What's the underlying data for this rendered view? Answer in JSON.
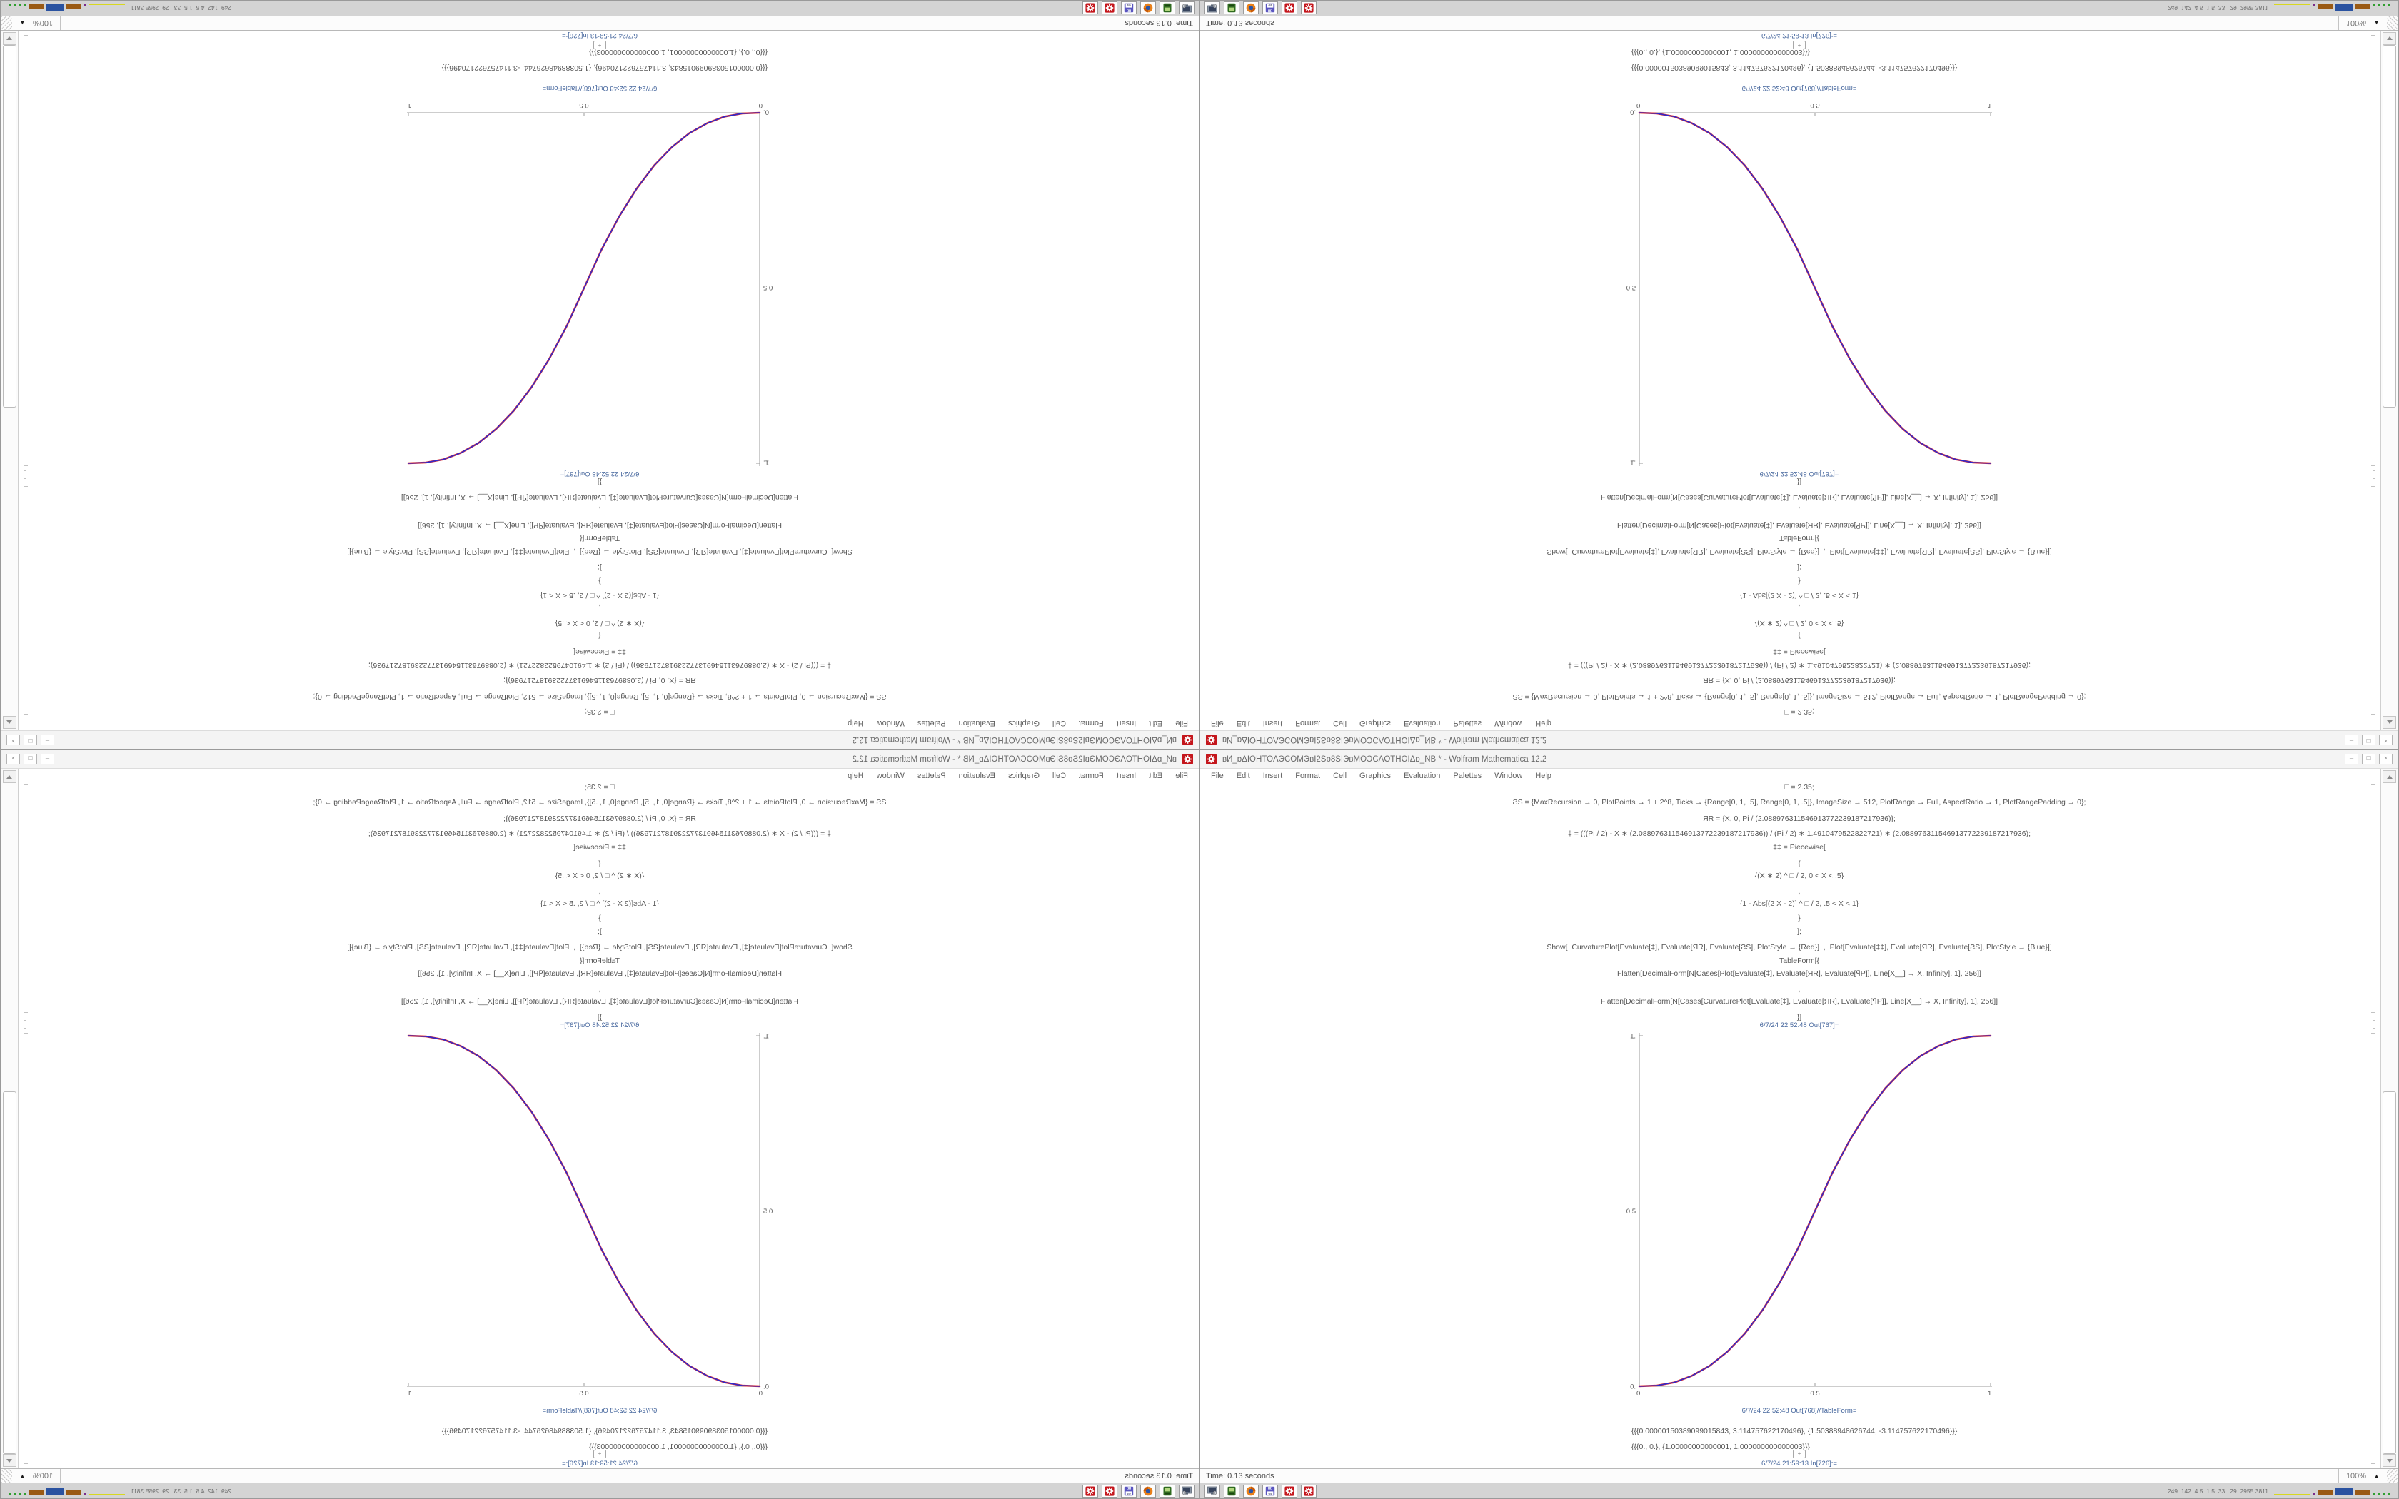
{
  "window": {
    "title": "вИ_ɒΔIOHTOΛЭCOMЭвI2Sɒ8SIЭвMOƆCΛOTHOIΔɒ_NB * - Wolfram Mathematica 12.2",
    "app_icon": "mathematica-gear-icon",
    "menus": [
      "File",
      "Edit",
      "Insert",
      "Format",
      "Cell",
      "Graphics",
      "Evaluation",
      "Palettes",
      "Window",
      "Help"
    ],
    "buttons": [
      {
        "name": "minimize-button",
        "glyph": "–"
      },
      {
        "name": "maximize-button",
        "glyph": "□"
      },
      {
        "name": "close-button",
        "glyph": "×"
      }
    ]
  },
  "notebook": {
    "code_lines": [
      "□ = 2.35;",
      "ƧS = {MaxRecursion → 0, PlotPoints → 1 + 2^8, Ticks → {Range[0, 1, .5], Range[0, 1, .5]}, ImageSize → 512, PlotRange → Full, AspectRatio → 1, PlotRangePadding → 0};",
      "ЯR = {X, 0, Pi / (2.088976311546913772239187217936)};",
      "‡ = (((Pi / 2) - X ∗ (2.088976311546913772239187217936)) / (Pi / 2) ∗ 1.4910479522822721) ∗ (2.088976311546913772239187217936);",
      "‡‡ = Piecewise[",
      "{",
      "{(X ∗ 2) ^ □ / 2, 0 < X < .5}",
      ",",
      "{1 - Abs[(2 X - 2)] ^ □ / 2, .5 < X < 1}",
      "}",
      "];",
      "Show[  CurvaturePlot[Evaluate[‡], Evaluate[ЯR], Evaluate[ƧS], PlotStyle → {Red}]  ,  Plot[Evaluate[‡‡], Evaluate[ЯR], Evaluate[ƧS], PlotStyle → {Blue}]]",
      "TableForm[{",
      "Flatten[DecimalForm[N[Cases[Plot[Evaluate[‡], Evaluate[ЯR], Evaluate[ꟼP]], Line[X__] → X, Infinity], 1], 256]]",
      ",",
      "Flatten[DecimalForm[N[Cases[CurvaturePlot[Evaluate[‡], Evaluate[ЯR], Evaluate[ꟼP]], Line[X__] → X, Infinity], 1], 256]]",
      "}]"
    ],
    "out_label_plot": "6/7/24 22:52:48 Out[767]=",
    "out_label_table": "6/7/24 22:52:48 Out[768]//TableForm=",
    "table_lines": [
      "{{{0.00000150389099015843, 3.114757622170496}, {1.50388948626744, -3.114757622170496}}}",
      "{{{0., 0.}, {1.00000000000001, 1.000000000000003}}}"
    ],
    "cell_insert_plus": "+",
    "in_label": "6/7/24 21:59:13 In[726]:="
  },
  "chart_data": {
    "type": "line",
    "title": "",
    "xlabel": "",
    "ylabel": "",
    "xlim": [
      0,
      1
    ],
    "ylim": [
      0,
      1
    ],
    "x_ticks": [
      0,
      0.5,
      1
    ],
    "x_tick_labels": [
      "0.",
      "0.5",
      "1."
    ],
    "y_ticks": [
      0,
      0.5,
      1
    ],
    "y_tick_labels": [
      "0.",
      "0.5",
      "1."
    ],
    "grid": "off",
    "legend": "none",
    "axes_style": "left and bottom axes only, ticks pointing inward, gray #9b9b9b",
    "points": [
      [
        0,
        0
      ],
      [
        0.05,
        0.002
      ],
      [
        0.1,
        0.011
      ],
      [
        0.15,
        0.03
      ],
      [
        0.2,
        0.058
      ],
      [
        0.25,
        0.098
      ],
      [
        0.3,
        0.15
      ],
      [
        0.35,
        0.216
      ],
      [
        0.4,
        0.296
      ],
      [
        0.45,
        0.39
      ],
      [
        0.5,
        0.5
      ],
      [
        0.55,
        0.61
      ],
      [
        0.6,
        0.704
      ],
      [
        0.65,
        0.784
      ],
      [
        0.7,
        0.85
      ],
      [
        0.75,
        0.902
      ],
      [
        0.8,
        0.942
      ],
      [
        0.85,
        0.97
      ],
      [
        0.9,
        0.989
      ],
      [
        0.95,
        0.998
      ],
      [
        1,
        1
      ]
    ],
    "series": [
      {
        "name": "CurvaturePlot[‡] (Red)",
        "color": "#e02b2b",
        "width": 2.6
      },
      {
        "name": "Plot[‡‡] (Blue)",
        "color": "#2b2bd0",
        "width": 1.5
      }
    ]
  },
  "status_bar": {
    "time": "Time: 0.13 seconds",
    "zoom_level": "100%",
    "zoom_menu_arrow": "▲"
  },
  "taskbar": {
    "icons": [
      {
        "name": "screenshot-tool-icon"
      },
      {
        "name": "handheld-device-icon"
      },
      {
        "name": "firefox-icon"
      },
      {
        "name": "floppy-64-icon",
        "label": "64"
      },
      {
        "name": "mathematica-gear-icon"
      },
      {
        "name": "mathematica-gear-icon-2"
      }
    ],
    "system_monitor": {
      "numbers": "249  142  4.5  1.5  33   29  2955 3811",
      "bars": [
        {
          "color": "#d8d820",
          "w": 50,
          "h": 2,
          "style": "solid"
        },
        {
          "color": "#7a2a8a",
          "w": 4,
          "h": 4,
          "style": "solid"
        },
        {
          "color": "#9a5a14",
          "w": 20,
          "h": 7,
          "style": "solid"
        },
        {
          "color": "#2a52a0",
          "w": 24,
          "h": 10,
          "style": "solid"
        },
        {
          "color": "#9a5a14",
          "w": 20,
          "h": 7,
          "style": "solid"
        },
        {
          "color": "#2f9e2f",
          "w": 26,
          "h": 3,
          "style": "dashes"
        }
      ]
    }
  }
}
